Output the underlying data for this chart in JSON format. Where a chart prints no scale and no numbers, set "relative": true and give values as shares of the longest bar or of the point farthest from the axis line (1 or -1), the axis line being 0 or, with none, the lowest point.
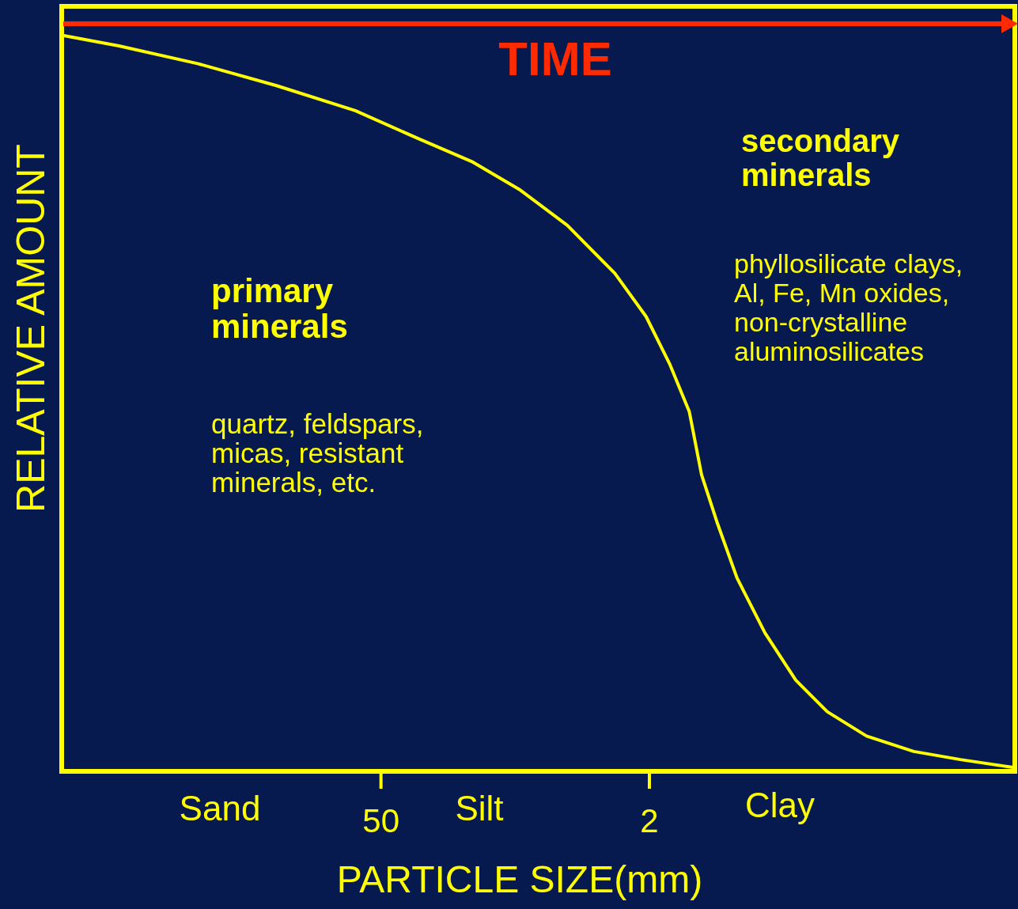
{
  "chart_data": {
    "type": "line",
    "relative": true,
    "log": "x",
    "xlabel": "PARTICLE SIZE(mm)",
    "ylabel": "RELATIVE AMOUNT",
    "xlim": [
      2300,
      0.025
    ],
    "xticks": [
      50,
      2
    ],
    "tick_labels": "x",
    "grid": false,
    "marker": "none",
    "line_style": "solid",
    "annotations": [
      "TIME",
      "primary\nminerals",
      "quartz, feldspars,\nmicas, resistant\nminerals,  etc.",
      "secondary\nminerals",
      "phyllosilicate clays,\nAl, Fe, Mn oxides,\nnon-crystalline\naluminosilicates",
      "Sand",
      "Silt",
      "Clay"
    ],
    "series": [
      {
        "color": "#ffff00",
        "x": [
          2244,
          1159,
          451,
          175,
          68,
          32,
          16.6,
          9.4,
          5.35,
          3.03,
          2.08,
          1.57,
          1.24,
          1.07,
          0.89,
          0.7,
          0.5,
          0.346,
          0.237,
          0.148,
          0.084,
          0.048,
          0.025
        ],
        "values": [
          1,
          0.986,
          0.962,
          0.932,
          0.898,
          0.86,
          0.828,
          0.79,
          0.742,
          0.677,
          0.618,
          0.554,
          0.489,
          0.403,
          0.339,
          0.263,
          0.188,
          0.124,
          0.081,
          0.048,
          0.027,
          0.016,
          0.005
        ]
      }
    ]
  }
}
